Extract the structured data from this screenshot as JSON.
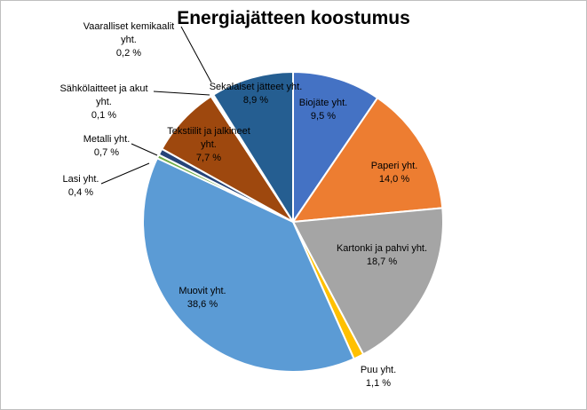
{
  "chart_data": {
    "type": "pie",
    "title": "Energiajätteen koostumus",
    "slices": [
      {
        "name": "Biojäte yht.",
        "value": 9.5,
        "label": "9,5 %",
        "color": "#4472c4"
      },
      {
        "name": "Paperi yht.",
        "value": 14.0,
        "label": "14,0 %",
        "color": "#ed7d31"
      },
      {
        "name": "Kartonki ja pahvi yht.",
        "value": 18.7,
        "label": "18,7 %",
        "color": "#a5a5a5"
      },
      {
        "name": "Puu yht.",
        "value": 1.1,
        "label": "1,1 %",
        "color": "#ffc000"
      },
      {
        "name": "Muovit yht.",
        "value": 38.6,
        "label": "38,6 %",
        "color": "#5b9bd5"
      },
      {
        "name": "Lasi yht.",
        "value": 0.4,
        "label": "0,4 %",
        "color": "#70ad47"
      },
      {
        "name": "Metalli yht.",
        "value": 0.7,
        "label": "0,7 %",
        "color": "#264478"
      },
      {
        "name": "Tekstiilit ja jalkineet yht.",
        "value": 7.7,
        "label": "7,7 %",
        "color": "#9e480e"
      },
      {
        "name": "Sähkölaitteet ja akut yht.",
        "value": 0.1,
        "label": "0,1 %",
        "color": "#636363"
      },
      {
        "name": "Vaaralliset kemikaalit yht.",
        "value": 0.2,
        "label": "0,2 %",
        "color": "#997300"
      },
      {
        "name": "Sekalaiset jätteet yht.",
        "value": 8.9,
        "label": "8,9 %",
        "color": "#255e91"
      }
    ],
    "legend": "none"
  }
}
